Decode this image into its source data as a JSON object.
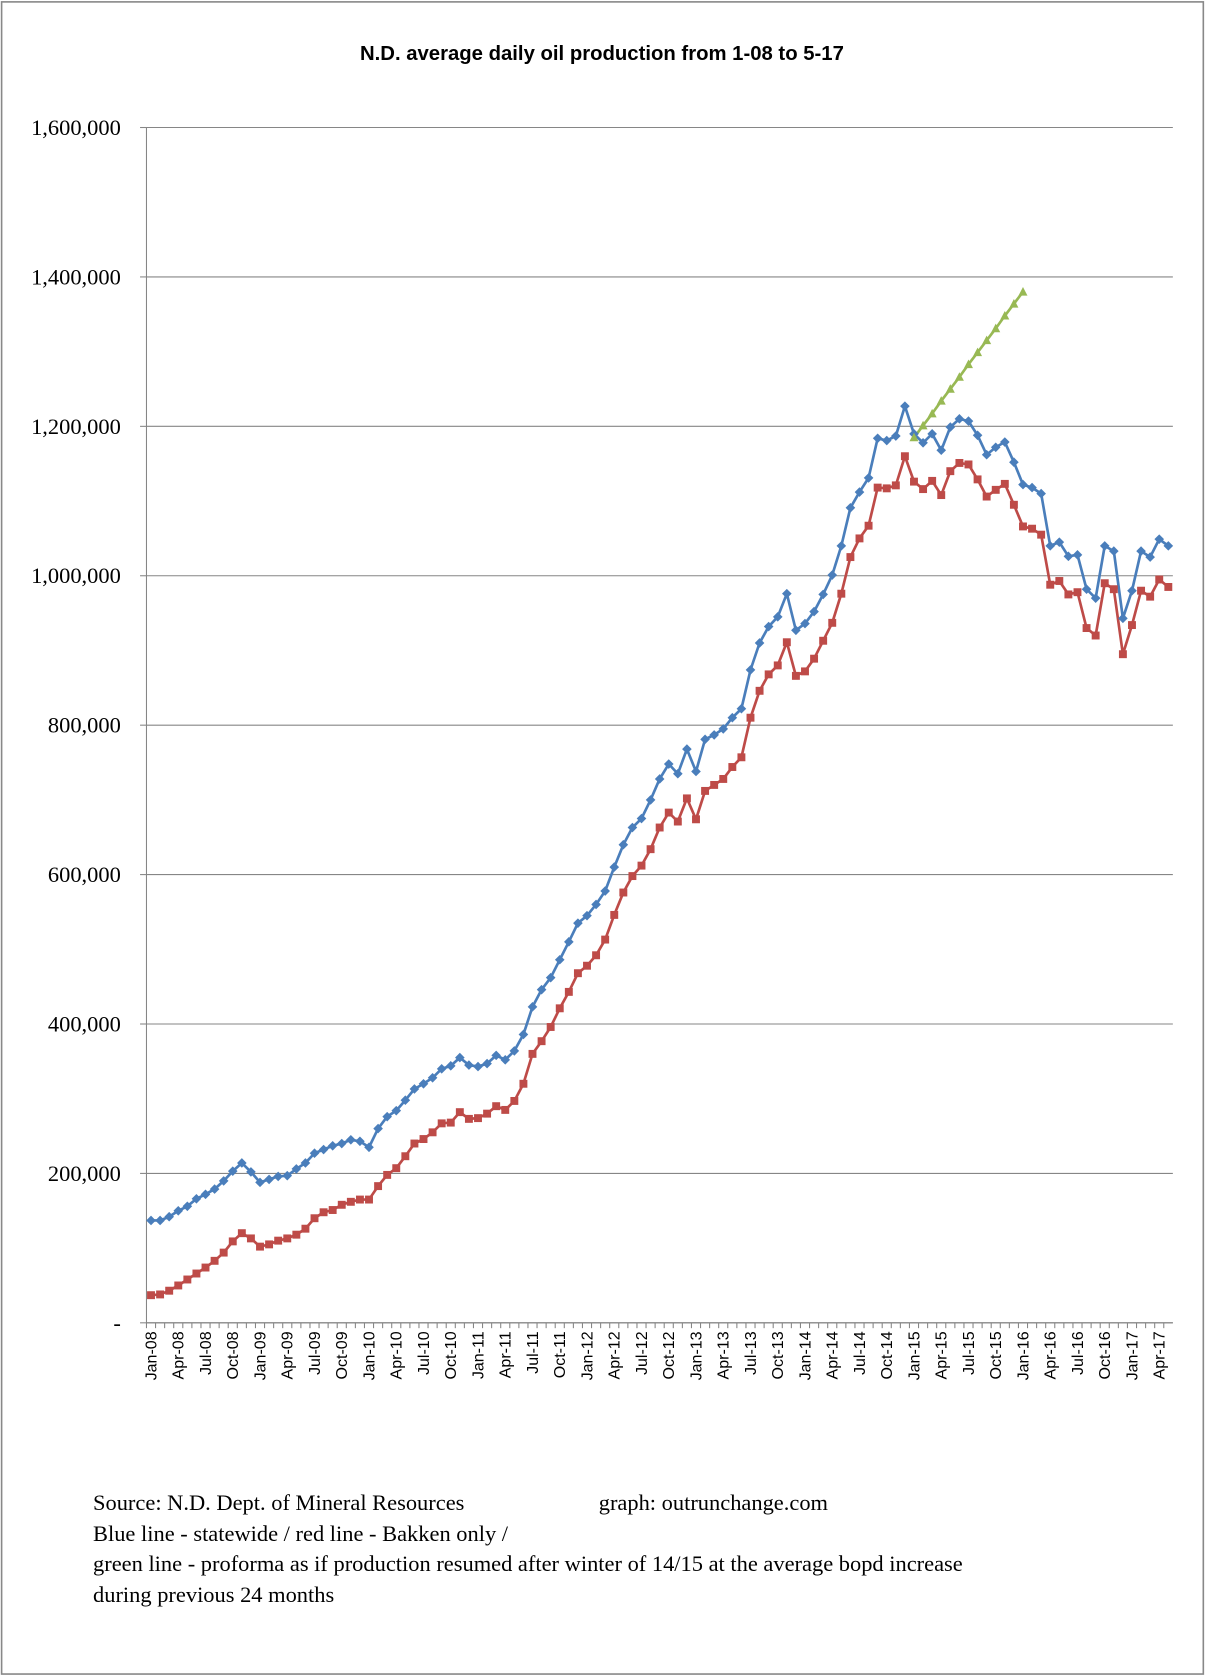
{
  "chart_data": {
    "type": "line",
    "title": "N.D. average daily oil production from 1-08 to 5-17",
    "categories": [
      "Jan-08",
      null,
      null,
      "Apr-08",
      null,
      null,
      "Jul-08",
      null,
      null,
      "Oct-08",
      null,
      null,
      "Jan-09",
      null,
      null,
      "Apr-09",
      null,
      null,
      "Jul-09",
      null,
      null,
      "Oct-09",
      null,
      null,
      "Jan-10",
      null,
      null,
      "Apr-10",
      null,
      null,
      "Jul-10",
      null,
      null,
      "Oct-10",
      null,
      null,
      "Jan-11",
      null,
      null,
      "Apr-11",
      null,
      null,
      "Jul-11",
      null,
      null,
      "Oct-11",
      null,
      null,
      "Jan-12",
      null,
      null,
      "Apr-12",
      null,
      null,
      "Jul-12",
      null,
      null,
      "Oct-12",
      null,
      null,
      "Jan-13",
      null,
      null,
      "Apr-13",
      null,
      null,
      "Jul-13",
      null,
      null,
      "Oct-13",
      null,
      null,
      "Jan-14",
      null,
      null,
      "Apr-14",
      null,
      null,
      "Jul-14",
      null,
      null,
      "Oct-14",
      null,
      null,
      "Jan-15",
      null,
      null,
      "Apr-15",
      null,
      null,
      "Jul-15",
      null,
      null,
      "Oct-15",
      null,
      null,
      "Jan-16",
      null,
      null,
      "Apr-16",
      null,
      null,
      "Jul-16",
      null,
      null,
      "Oct-16",
      null,
      null,
      "Jan-17",
      null,
      null,
      "Apr-17",
      null
    ],
    "series": [
      {
        "color": "#4a7ebb",
        "marker": "diamond",
        "values": [
          137000,
          137000,
          142000,
          150000,
          156000,
          166000,
          172000,
          179000,
          190000,
          203000,
          214000,
          202000,
          188000,
          192000,
          196000,
          197000,
          206000,
          214000,
          227000,
          232000,
          237000,
          240000,
          245000,
          243000,
          235000,
          260000,
          276000,
          284000,
          298000,
          313000,
          320000,
          328000,
          340000,
          344000,
          355000,
          345000,
          343000,
          347000,
          358000,
          352000,
          364000,
          386000,
          423000,
          446000,
          462000,
          486000,
          510000,
          535000,
          545000,
          560000,
          578000,
          610000,
          640000,
          663000,
          675000,
          700000,
          728000,
          748000,
          735000,
          768000,
          738000,
          781000,
          787000,
          795000,
          810000,
          822000,
          874000,
          910000,
          932000,
          945000,
          976000,
          927000,
          936000,
          952000,
          975000,
          1001000,
          1040000,
          1091000,
          1112000,
          1131000,
          1184000,
          1181000,
          1187000,
          1227000,
          1190000,
          1178000,
          1190000,
          1168000,
          1199000,
          1210000,
          1207000,
          1188000,
          1162000,
          1172000,
          1179000,
          1152000,
          1122000,
          1118000,
          1110000,
          1040000,
          1045000,
          1026000,
          1028000,
          982000,
          970000,
          1040000,
          1033000,
          943000,
          980000,
          1033000,
          1025000,
          1049000,
          1040000
        ]
      },
      {
        "color": "#be4b48",
        "marker": "square",
        "values": [
          37000,
          38000,
          43000,
          50000,
          58000,
          66000,
          74000,
          83000,
          94000,
          109000,
          120000,
          113000,
          102000,
          105000,
          110000,
          113000,
          118000,
          126000,
          140000,
          148000,
          151000,
          158000,
          162000,
          165000,
          165000,
          183000,
          198000,
          207000,
          223000,
          240000,
          246000,
          255000,
          267000,
          268000,
          282000,
          273000,
          274000,
          280000,
          290000,
          285000,
          297000,
          320000,
          360000,
          377000,
          396000,
          421000,
          443000,
          468000,
          478000,
          492000,
          513000,
          546000,
          576000,
          598000,
          612000,
          634000,
          663000,
          683000,
          671000,
          702000,
          674000,
          712000,
          720000,
          728000,
          744000,
          757000,
          810000,
          846000,
          868000,
          880000,
          911000,
          866000,
          872000,
          889000,
          913000,
          937000,
          976000,
          1025000,
          1050000,
          1067000,
          1118000,
          1117000,
          1121000,
          1160000,
          1126000,
          1116000,
          1127000,
          1108000,
          1140000,
          1151000,
          1149000,
          1129000,
          1106000,
          1115000,
          1123000,
          1095000,
          1066000,
          1063000,
          1055000,
          988000,
          993000,
          975000,
          978000,
          930000,
          920000,
          990000,
          982000,
          895000,
          934000,
          980000,
          972000,
          995000,
          985000
        ]
      },
      {
        "color": "#98b954",
        "marker": "triangle",
        "values": [
          null,
          null,
          null,
          null,
          null,
          null,
          null,
          null,
          null,
          null,
          null,
          null,
          null,
          null,
          null,
          null,
          null,
          null,
          null,
          null,
          null,
          null,
          null,
          null,
          null,
          null,
          null,
          null,
          null,
          null,
          null,
          null,
          null,
          null,
          null,
          null,
          null,
          null,
          null,
          null,
          null,
          null,
          null,
          null,
          null,
          null,
          null,
          null,
          null,
          null,
          null,
          null,
          null,
          null,
          null,
          null,
          null,
          null,
          null,
          null,
          null,
          null,
          null,
          null,
          null,
          null,
          null,
          null,
          null,
          null,
          null,
          null,
          null,
          null,
          null,
          null,
          null,
          null,
          null,
          null,
          null,
          null,
          null,
          null,
          1185000,
          1201000,
          1217000,
          1234000,
          1250000,
          1266000,
          1283000,
          1299000,
          1315000,
          1331000,
          1348000,
          1364000,
          1380000,
          null,
          null,
          null,
          null,
          null,
          null,
          null,
          null,
          null,
          null,
          null,
          null,
          null,
          null,
          null,
          null
        ]
      }
    ],
    "ylim": [
      0,
      1600000
    ],
    "yticks": [
      {
        "value": 0,
        "label": "-"
      },
      {
        "value": 200000,
        "label": "200,000"
      },
      {
        "value": 400000,
        "label": "400,000"
      },
      {
        "value": 600000,
        "label": "600,000"
      },
      {
        "value": 800000,
        "label": "800,000"
      },
      {
        "value": 1000000,
        "label": "1,000,000"
      },
      {
        "value": 1200000,
        "label": "1,200,000"
      },
      {
        "value": 1400000,
        "label": "1,400,000"
      },
      {
        "value": 1600000,
        "label": "1,600,000"
      }
    ],
    "grid": true,
    "source": "Source: N.D. Dept. of Mineral Resources",
    "credit": "graph: outrunchange.com",
    "notes": [
      "Blue line - statewide  / red line - Bakken only /",
      "green line - proforma as if production resumed after winter of 14/15 at the average bopd increase",
      "during previous 24 months"
    ]
  }
}
